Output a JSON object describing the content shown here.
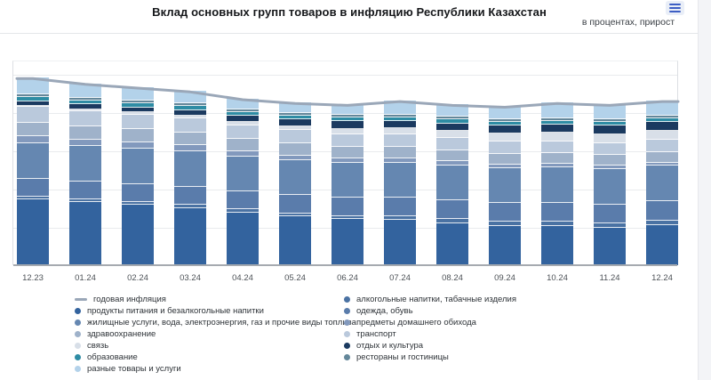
{
  "header": {
    "title": "Вклад основных групп товаров в инфляцию Республики Казахстан",
    "units_note": "в процентах, прирост"
  },
  "colors": {
    "accent_menu": "#3d5ec4",
    "menu_bg": "#e9eef7",
    "inflation_line": "#9aa7b8",
    "gridline": "#e9ebee",
    "axis": "#a6aab0"
  },
  "chart_data": {
    "type": "bar",
    "subtype": "stacked_columns_with_line_overlay",
    "title": "Вклад основных групп товаров в инфляцию Республики Казахстан",
    "units": "в процентах, прирост",
    "xlabel": "",
    "ylabel": "",
    "ylim": [
      0,
      10
    ],
    "grid": true,
    "legend_position": "bottom",
    "categories": [
      "12.23",
      "01.24",
      "02.24",
      "03.24",
      "04.24",
      "05.24",
      "06.24",
      "07.24",
      "08.24",
      "09.24",
      "10.24",
      "11.24",
      "12.24"
    ],
    "series": [
      {
        "name": "продукты питания и безалкогольные напитки",
        "color": "#33639E",
        "values": [
          3.45,
          3.3,
          3.15,
          3.0,
          2.75,
          2.55,
          2.4,
          2.35,
          2.2,
          2.05,
          2.05,
          1.95,
          2.1
        ]
      },
      {
        "name": "алкогольные напитки, табачные изделия",
        "color": "#4A72A3",
        "values": [
          0.12,
          0.13,
          0.14,
          0.15,
          0.16,
          0.17,
          0.18,
          0.19,
          0.2,
          0.21,
          0.22,
          0.23,
          0.24
        ]
      },
      {
        "name": "одежда, обувь",
        "color": "#5A7CAB",
        "values": [
          0.95,
          0.95,
          0.95,
          0.95,
          0.95,
          0.95,
          0.95,
          0.98,
          0.98,
          0.98,
          1.0,
          1.0,
          1.0
        ]
      },
      {
        "name": "жилищные услуги, вода, электроэнергия, газ и прочие виды топлива",
        "color": "#6587B1",
        "values": [
          1.85,
          1.85,
          1.85,
          1.85,
          1.8,
          1.8,
          1.8,
          1.85,
          1.85,
          1.85,
          1.86,
          1.86,
          1.86
        ]
      },
      {
        "name": "предметы домашнего обихода",
        "color": "#8299BD",
        "values": [
          0.37,
          0.35,
          0.33,
          0.31,
          0.29,
          0.27,
          0.25,
          0.23,
          0.21,
          0.19,
          0.18,
          0.17,
          0.17
        ]
      },
      {
        "name": "здравоохранение",
        "color": "#9FB2CA",
        "values": [
          0.72,
          0.7,
          0.68,
          0.66,
          0.64,
          0.62,
          0.6,
          0.58,
          0.57,
          0.56,
          0.55,
          0.55,
          0.55
        ]
      },
      {
        "name": "транспорт",
        "color": "#BAC9DC",
        "values": [
          0.8,
          0.78,
          0.76,
          0.74,
          0.72,
          0.7,
          0.68,
          0.66,
          0.65,
          0.64,
          0.63,
          0.62,
          0.62
        ]
      },
      {
        "name": "связь",
        "color": "#D8DFE8",
        "values": [
          0.09,
          0.1,
          0.12,
          0.15,
          0.18,
          0.22,
          0.26,
          0.32,
          0.36,
          0.4,
          0.44,
          0.48,
          0.5
        ]
      },
      {
        "name": "отдых и культура",
        "color": "#1B3A60",
        "values": [
          0.23,
          0.25,
          0.27,
          0.29,
          0.31,
          0.33,
          0.4,
          0.38,
          0.4,
          0.42,
          0.44,
          0.46,
          0.47
        ]
      },
      {
        "name": "образование",
        "color": "#2E8CA4",
        "values": [
          0.23,
          0.22,
          0.22,
          0.21,
          0.21,
          0.2,
          0.2,
          0.2,
          0.19,
          0.19,
          0.19,
          0.19,
          0.19
        ]
      },
      {
        "name": "рестораны и гостиницы",
        "color": "#64879A",
        "values": [
          0.14,
          0.14,
          0.14,
          0.14,
          0.14,
          0.14,
          0.14,
          0.14,
          0.14,
          0.14,
          0.14,
          0.14,
          0.14
        ]
      },
      {
        "name": "разные товары и услуги",
        "color": "#B3D2EA",
        "values": [
          0.85,
          0.73,
          0.69,
          0.65,
          0.55,
          0.55,
          0.54,
          0.72,
          0.65,
          0.67,
          0.8,
          0.75,
          0.76
        ]
      }
    ],
    "line": {
      "name": "годовая инфляция",
      "color": "#9aa7b8",
      "values": [
        9.8,
        9.5,
        9.3,
        9.1,
        8.7,
        8.5,
        8.4,
        8.6,
        8.4,
        8.3,
        8.5,
        8.4,
        8.6
      ]
    }
  },
  "legend": {
    "left": [
      {
        "label": "годовая инфляция",
        "color": "#9aa7b8",
        "marker": "line"
      },
      {
        "label": "продукты питания и безалкогольные напитки",
        "color": "#33639E",
        "marker": "dot"
      },
      {
        "label": "жилищные услуги, вода, электроэнергия, газ и прочие виды топлива",
        "color": "#6587B1",
        "marker": "dot"
      },
      {
        "label": "здравоохранение",
        "color": "#9FB2CA",
        "marker": "dot"
      },
      {
        "label": "связь",
        "color": "#D8DFE8",
        "marker": "dot"
      },
      {
        "label": "образование",
        "color": "#2E8CA4",
        "marker": "dot"
      },
      {
        "label": "разные товары и услуги",
        "color": "#B3D2EA",
        "marker": "dot"
      }
    ],
    "right": [
      {
        "label": "алкогольные напитки, табачные изделия",
        "color": "#4A72A3",
        "marker": "dot"
      },
      {
        "label": "одежда, обувь",
        "color": "#5A7CAB",
        "marker": "dot"
      },
      {
        "label": "предметы домашнего обихода",
        "color": "#8299BD",
        "marker": "dot"
      },
      {
        "label": "транспорт",
        "color": "#BAC9DC",
        "marker": "dot"
      },
      {
        "label": "отдых и культура",
        "color": "#1B3A60",
        "marker": "dot"
      },
      {
        "label": "рестораны и гостиницы",
        "color": "#64879A",
        "marker": "dot"
      }
    ]
  }
}
